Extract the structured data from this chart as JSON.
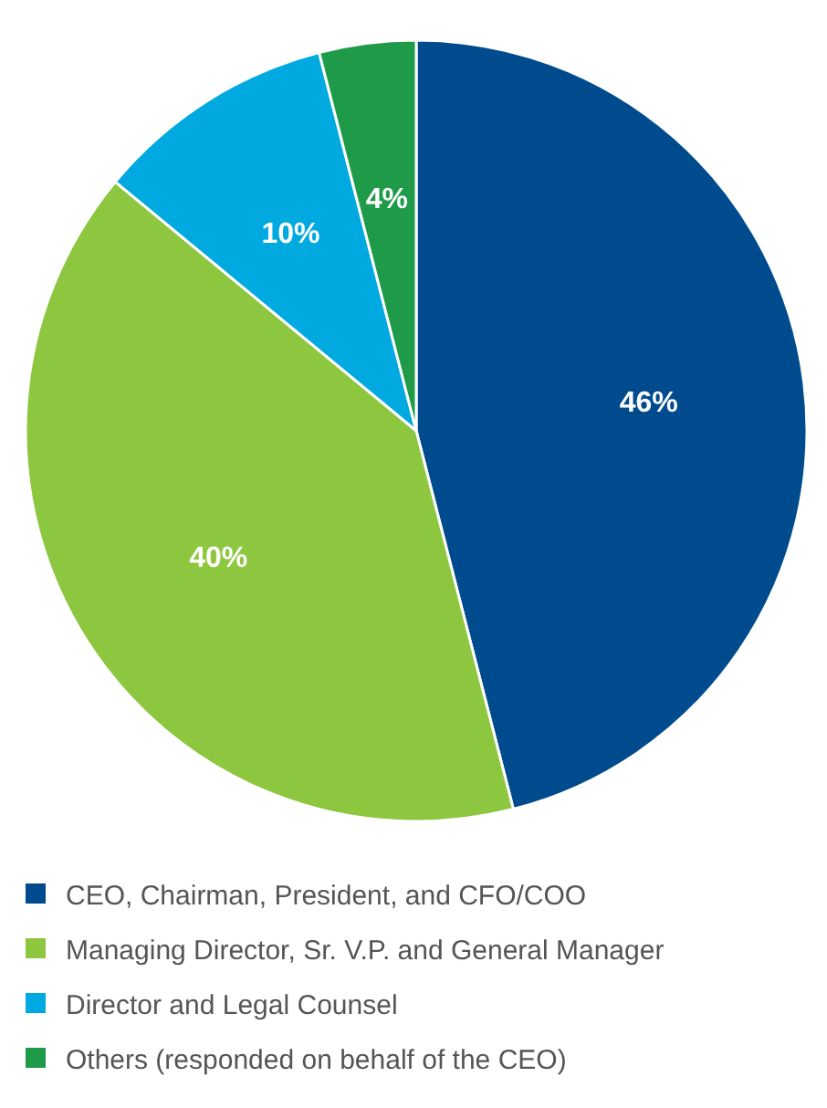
{
  "chart_data": {
    "type": "pie",
    "categories": [
      "CEO, Chairman, President, and CFO/COO",
      "Managing Director, Sr. V.P. and General Manager",
      "Director and Legal Counsel",
      "Others (responded on behalf of the CEO)"
    ],
    "values": [
      46,
      40,
      10,
      4
    ],
    "colors": [
      "#004b8d",
      "#8dc63f",
      "#00a9e0",
      "#1f9a48"
    ],
    "value_labels": [
      "46%",
      "40%",
      "10%",
      "4%"
    ],
    "legend": "bottom"
  }
}
